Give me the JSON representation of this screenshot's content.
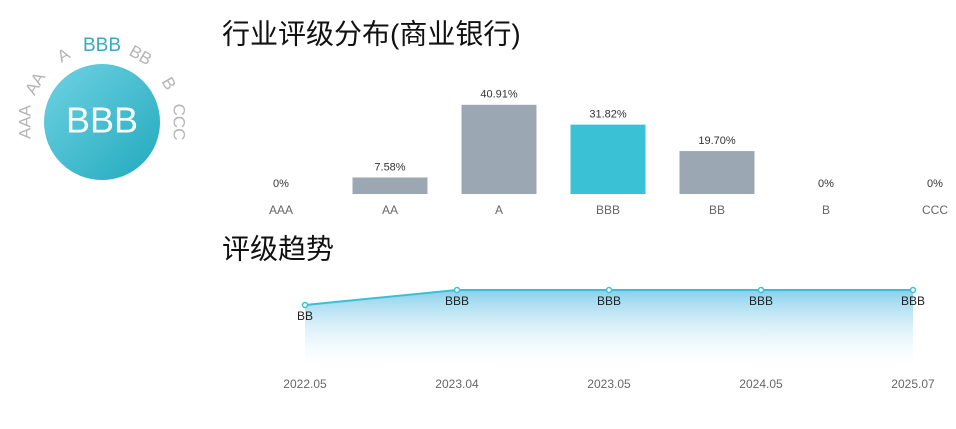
{
  "badge": {
    "rating": "BBB",
    "scale": [
      "AAA",
      "AA",
      "A",
      "BBB",
      "BB",
      "B",
      "CCC"
    ]
  },
  "chart_data": [
    {
      "type": "bar",
      "title": "行业评级分布(商业银行)",
      "categories": [
        "AAA",
        "AA",
        "A",
        "BBB",
        "BB",
        "B",
        "CCC"
      ],
      "values": [
        0,
        7.58,
        40.91,
        31.82,
        19.7,
        0,
        0
      ],
      "value_labels": [
        "0%",
        "7.58%",
        "40.91%",
        "31.82%",
        "19.70%",
        "0%",
        "0%"
      ],
      "colors": [
        "#9ba7b3",
        "#9ba7b3",
        "#9ba7b3",
        "#3bc1d5",
        "#9ba7b3",
        "#9ba7b3",
        "#9ba7b3"
      ]
    },
    {
      "type": "line",
      "title": "评级趋势",
      "categories": [
        "2022.05",
        "2023.04",
        "2023.05",
        "2024.05",
        "2025.07"
      ],
      "values": [
        "BB",
        "BBB",
        "BBB",
        "BBB",
        "BBB"
      ],
      "color": "#3bbfd4"
    }
  ]
}
